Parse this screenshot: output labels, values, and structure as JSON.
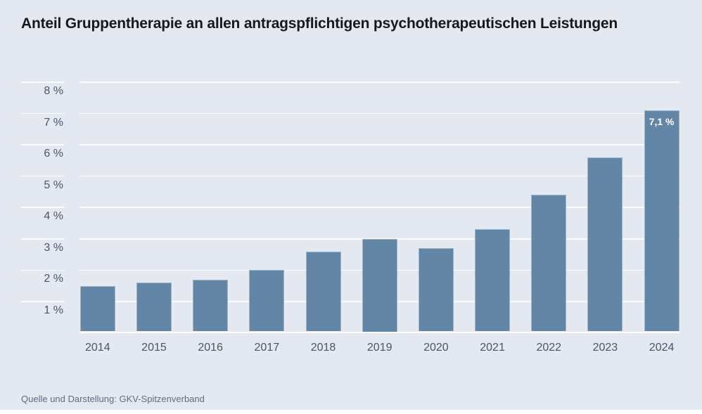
{
  "title": "Anteil Gruppentherapie an allen antragspflichtigen psychotherapeutischen Leistungen",
  "source": "Quelle und Darstellung: GKV-Spitzenverband",
  "colors": {
    "background": "#e4e8f0",
    "bar": "#6386a6",
    "grid": "#ffffff",
    "title": "#17171c",
    "axis_label": "#47566b",
    "source_text": "#5d6e84",
    "bar_value_label": "#ffffff"
  },
  "chart_data": {
    "type": "bar",
    "title": "Anteil Gruppentherapie an allen antragspflichtigen psychotherapeutischen Leistungen",
    "categories": [
      "2014",
      "2015",
      "2016",
      "2017",
      "2018",
      "2019",
      "2020",
      "2021",
      "2022",
      "2023",
      "2024"
    ],
    "values": [
      1.5,
      1.6,
      1.7,
      2.0,
      2.6,
      3.0,
      2.7,
      3.3,
      4.4,
      5.6,
      7.1
    ],
    "value_labels": [
      null,
      null,
      null,
      null,
      null,
      null,
      null,
      null,
      null,
      null,
      "7,1 %"
    ],
    "unit": "%",
    "xlabel": "",
    "ylabel": "",
    "yticks": [
      1,
      2,
      3,
      4,
      5,
      6,
      7,
      8
    ],
    "ytick_suffix": " %",
    "ylim": [
      0,
      8
    ],
    "grid": true,
    "legend": false,
    "gridline_color": "#ffffff",
    "bar_color": "#6386a6"
  }
}
